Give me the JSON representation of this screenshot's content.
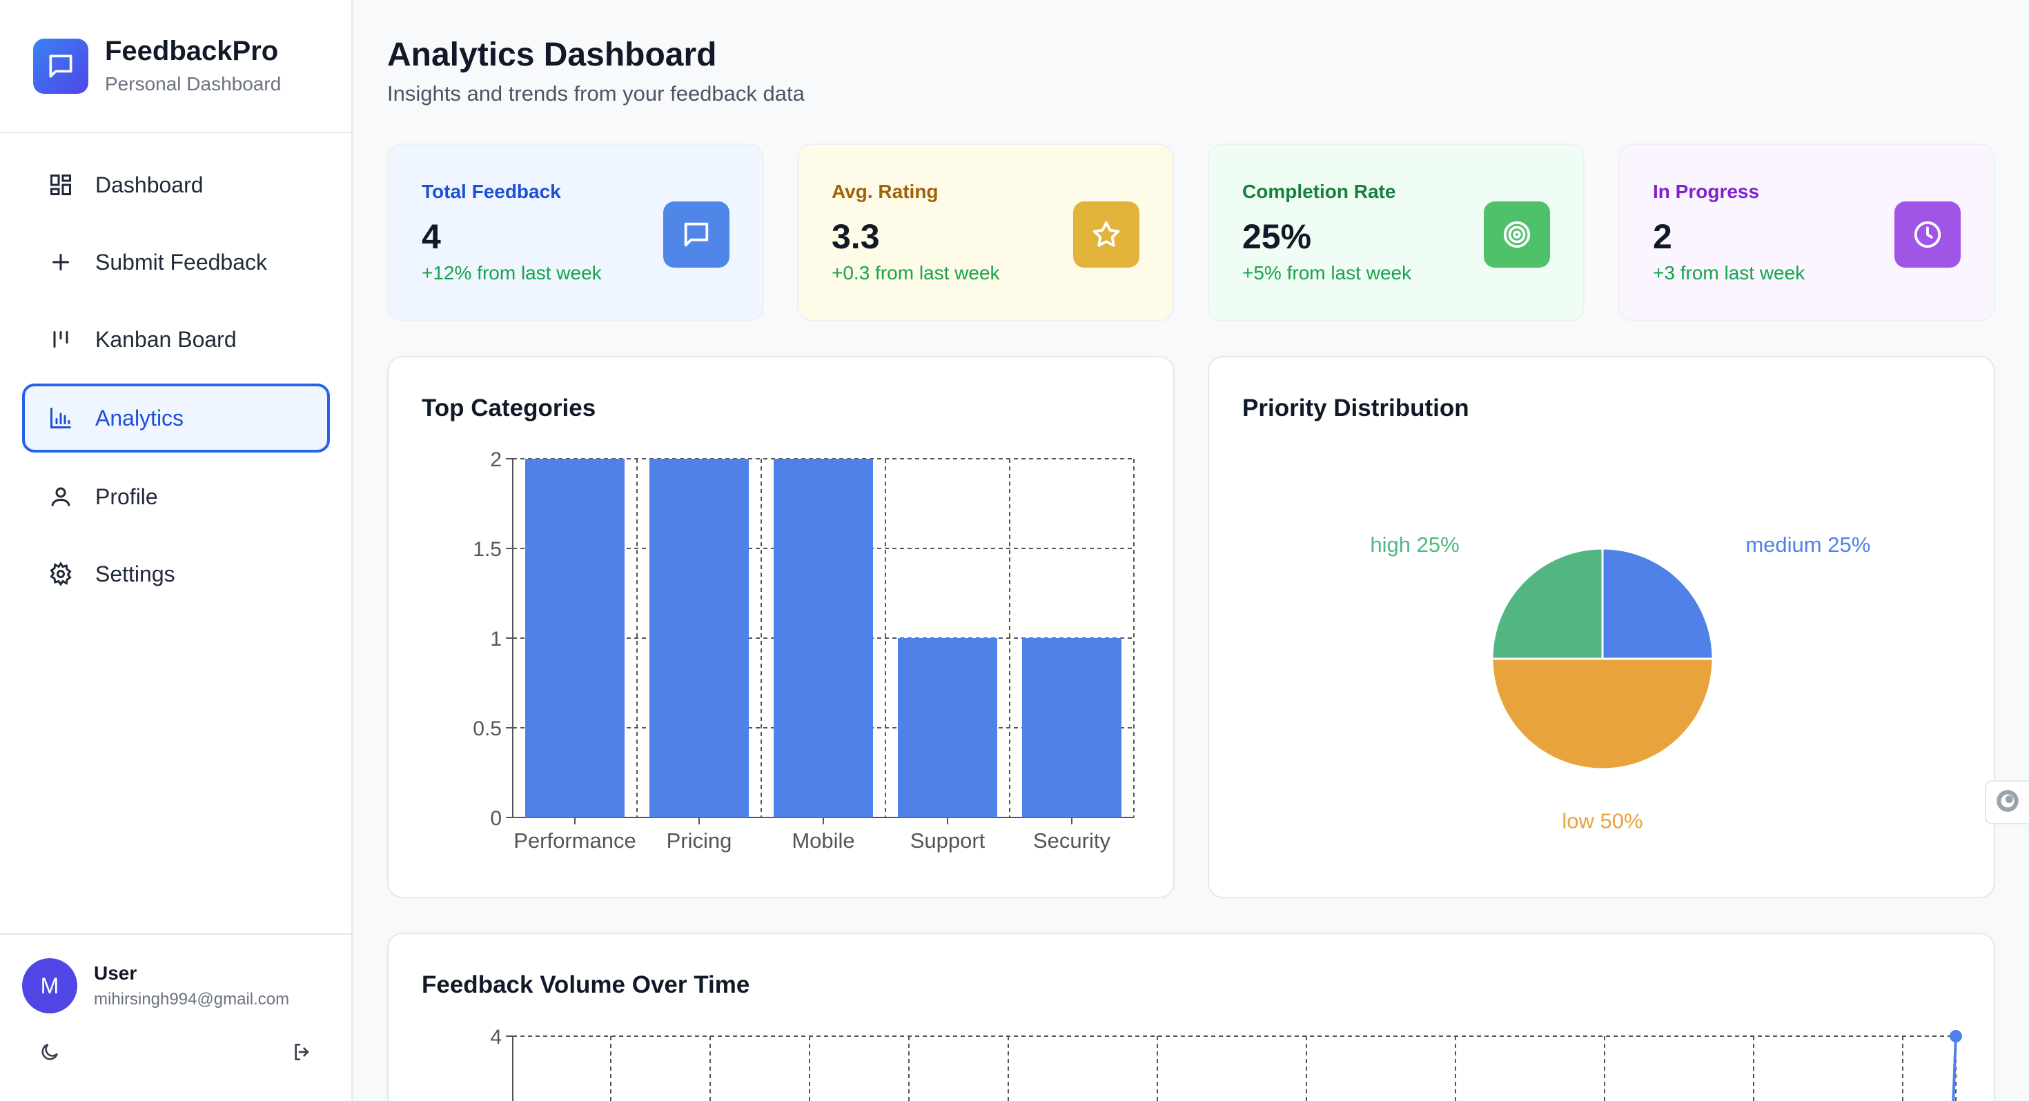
{
  "brand": {
    "title": "FeedbackPro",
    "subtitle": "Personal Dashboard"
  },
  "nav": [
    {
      "label": "Dashboard",
      "icon": "layout-grid-icon"
    },
    {
      "label": "Submit Feedback",
      "icon": "plus-icon"
    },
    {
      "label": "Kanban Board",
      "icon": "kanban-icon"
    },
    {
      "label": "Analytics",
      "icon": "bar-chart-icon",
      "active": true
    },
    {
      "label": "Profile",
      "icon": "user-icon"
    },
    {
      "label": "Settings",
      "icon": "gear-icon"
    }
  ],
  "user": {
    "initial": "M",
    "name": "User",
    "email": "mihirsingh994@gmail.com"
  },
  "header": {
    "title": "Analytics Dashboard",
    "subtitle": "Insights and trends from your feedback data"
  },
  "stats": [
    {
      "label": "Total Feedback",
      "value": "4",
      "delta": "+12% from last week",
      "icon": "message-icon",
      "bg": "#eff6ff",
      "labelColor": "#1d4ed8",
      "iconBg": "#4f86e8"
    },
    {
      "label": "Avg. Rating",
      "value": "3.3",
      "delta": "+0.3 from last week",
      "icon": "star-icon",
      "bg": "#fefce8",
      "labelColor": "#a16207",
      "iconBg": "#e2b33a"
    },
    {
      "label": "Completion Rate",
      "value": "25%",
      "delta": "+5% from last week",
      "icon": "target-icon",
      "bg": "#f0fdf4",
      "labelColor": "#15803d",
      "iconBg": "#4fc16b"
    },
    {
      "label": "In Progress",
      "value": "2",
      "delta": "+3 from last week",
      "icon": "clock-icon",
      "bg": "#faf5ff",
      "labelColor": "#7e22ce",
      "iconBg": "#a155e6"
    }
  ],
  "cards": {
    "categories_title": "Top Categories",
    "priority_title": "Priority Distribution",
    "volume_title": "Feedback Volume Over Time"
  },
  "chart_data": [
    {
      "type": "bar",
      "title": "Top Categories",
      "categories": [
        "Performance",
        "Pricing",
        "Mobile",
        "Support",
        "Security"
      ],
      "values": [
        2,
        2,
        2,
        1,
        1
      ],
      "ylim": [
        0,
        2
      ],
      "yticks": [
        "0",
        "0.5",
        "1",
        "1.5",
        "2"
      ],
      "color": "#4f81e9",
      "grid": true
    },
    {
      "type": "pie",
      "title": "Priority Distribution",
      "slices": [
        {
          "label": "medium 25%",
          "value": 25,
          "color": "#4f81e9"
        },
        {
          "label": "low 50%",
          "value": 50,
          "color": "#e8a33c"
        },
        {
          "label": "high 25%",
          "value": 25,
          "color": "#52b683"
        }
      ]
    },
    {
      "type": "line",
      "title": "Feedback Volume Over Time",
      "yticks": [
        "4"
      ],
      "last_value": 4,
      "color": "#4f81e9",
      "grid": true
    }
  ]
}
